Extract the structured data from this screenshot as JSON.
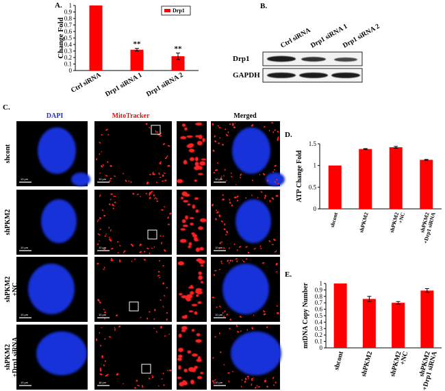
{
  "panels": {
    "A": "A.",
    "B": "B.",
    "C": "C.",
    "D": "D.",
    "E": "E."
  },
  "colors": {
    "bar": "#ff0000",
    "nucleus": "#1530d8",
    "mito": "#ff2020"
  },
  "chart_data": [
    {
      "id": "A",
      "type": "bar",
      "categories": [
        "Ctrl siRNA",
        "Drp1 siRNA 1",
        "Drp1 siRNA 2"
      ],
      "series": [
        {
          "name": "Drp1",
          "values": [
            1.0,
            0.32,
            0.22
          ],
          "errors": [
            0,
            0.02,
            0.05
          ]
        }
      ],
      "annotations": [
        "",
        "**",
        "**"
      ],
      "ylabel": "Change Fold",
      "ylim": [
        0,
        1
      ],
      "yticks": [
        "0",
        "0.1",
        "0.2",
        "0.3",
        "0.4",
        "0.5",
        "0.6",
        "0.7",
        "0.8",
        "0.9",
        "1"
      ],
      "legend": "top-right"
    },
    {
      "id": "D",
      "type": "bar",
      "categories": [
        "shcont",
        "shPKM2",
        "shPKM2 +NC",
        "shPKM2 +Drp1 siRNA"
      ],
      "values": [
        1.0,
        1.38,
        1.42,
        1.13
      ],
      "errors": [
        0,
        0.01,
        0.02,
        0.01
      ],
      "ylabel": "ATP Change Fold",
      "ylim": [
        0,
        1.5
      ],
      "yticks": [
        "0",
        "0.5",
        "1",
        "1.5"
      ]
    },
    {
      "id": "E",
      "type": "bar",
      "categories": [
        "shcont",
        "shPKM2",
        "shPKM2 +NC",
        "shPKM2 +Drp1 siRNA"
      ],
      "values": [
        1.0,
        0.76,
        0.7,
        0.89
      ],
      "errors": [
        0,
        0.04,
        0.02,
        0.03
      ],
      "ylabel": "mtDNA Copy Number",
      "ylim": [
        0,
        1
      ],
      "yticks": [
        "0",
        "0.1",
        "0.2",
        "0.3",
        "0.4",
        "0.5",
        "0.6",
        "0.7",
        "0.8",
        "0.9",
        "1"
      ]
    }
  ],
  "blot": {
    "columns": [
      "Ctrl siRNA",
      "Drp1 siRNA 1",
      "Drp1 siRNA 2"
    ],
    "rows": [
      "Drp1",
      "GAPDH"
    ]
  },
  "micrographs": {
    "columns": [
      "DAPI",
      "MitoTracker",
      "Merged"
    ],
    "rows": [
      {
        "line1": "shcont",
        "line2": ""
      },
      {
        "line1": "shPKM2",
        "line2": ""
      },
      {
        "line1": "shPKM2",
        "line2": "+NC"
      },
      {
        "line1": "shPKM2",
        "line2": "+Drp1 siRNA"
      }
    ],
    "scale_labels": [
      "10 µm",
      "10 µm",
      "10 µm",
      "10 µm"
    ]
  }
}
